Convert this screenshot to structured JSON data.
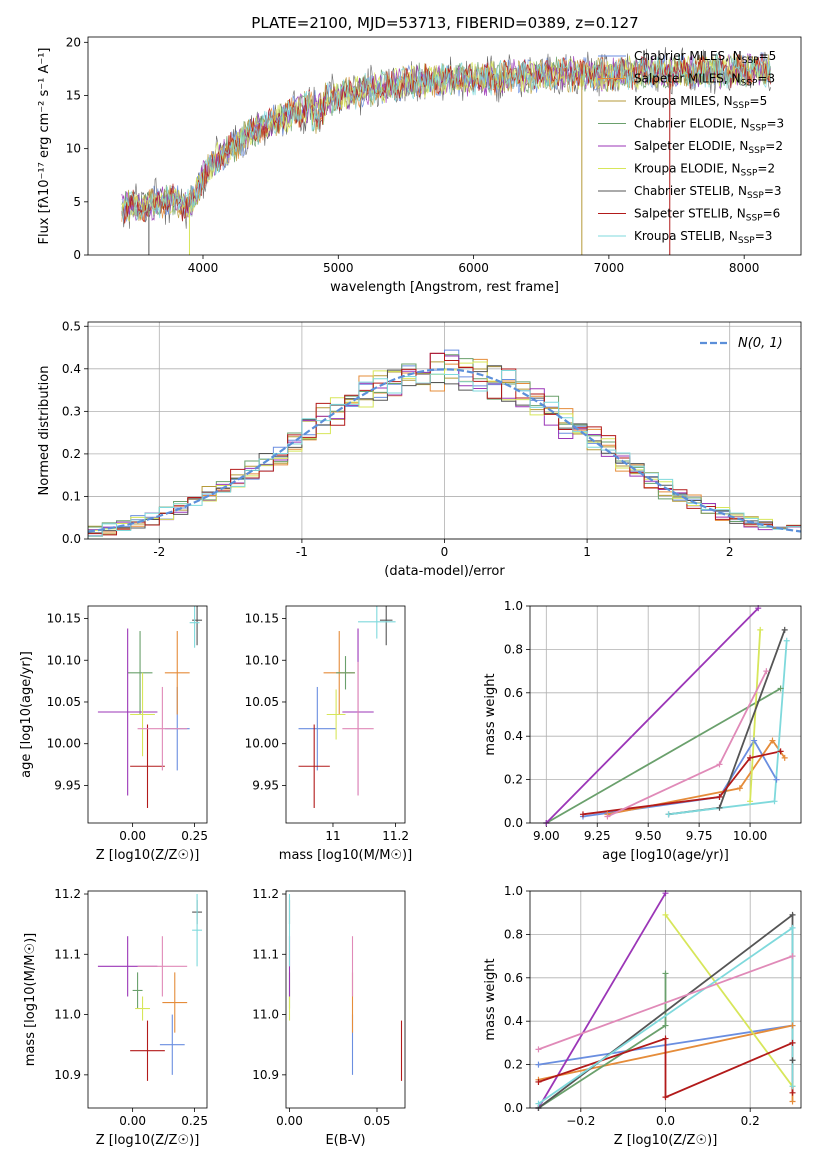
{
  "figure": {
    "title": "PLATE=2100, MJD=53713, FIBERID=0389, z=0.127"
  },
  "colors": {
    "c0": "#6a8ee0",
    "c1": "#e58c3a",
    "c2": "#b59a38",
    "c3": "#6aa06c",
    "c4": "#9b36b7",
    "c5": "#d7e65a",
    "c6": "#555555",
    "c7": "#b21a1a",
    "c8": "#7fd9dc",
    "c9": "#e08ab8",
    "normal": "#5b8fd9"
  },
  "chart_data": [
    {
      "type": "line",
      "xlabel": "wavelength [Angstrom, rest frame]",
      "ylabel": "Flux [fλ10⁻¹⁷ erg cm⁻² s⁻¹ A⁻¹]",
      "xlim": [
        3150,
        8420
      ],
      "ylim": [
        0,
        20.5
      ],
      "xticks": [
        4000,
        5000,
        6000,
        7000,
        8000
      ],
      "yticks": [
        0,
        5,
        10,
        15,
        20
      ],
      "legend_position": "right",
      "series": [
        {
          "name": "Chabrier MILES, N_SSP=5",
          "color": "#6a8ee0"
        },
        {
          "name": "Salpeter MILES, N_SSP=3",
          "color": "#e58c3a"
        },
        {
          "name": "Kroupa MILES, N_SSP=5",
          "color": "#b59a38"
        },
        {
          "name": "Chabrier ELODIE, N_SSP=3",
          "color": "#6aa06c"
        },
        {
          "name": "Salpeter ELODIE, N_SSP=2",
          "color": "#9b36b7"
        },
        {
          "name": "Kroupa ELODIE, N_SSP=2",
          "color": "#d7e65a"
        },
        {
          "name": "Chabrier STELIB, N_SSP=3",
          "color": "#555555"
        },
        {
          "name": "Salpeter STELIB, N_SSP=6",
          "color": "#b21a1a"
        },
        {
          "name": "Kroupa STELIB, N_SSP=3",
          "color": "#7fd9dc"
        }
      ],
      "continuum": {
        "x": [
          3400,
          3600,
          3800,
          3900,
          4000,
          4100,
          4300,
          4500,
          4700,
          4900,
          5000,
          5200,
          5400,
          5600,
          5800,
          6000,
          6200,
          6400,
          6600,
          6800,
          7000,
          7200,
          7400,
          7600,
          7800,
          8000,
          8200
        ],
        "y": [
          4.5,
          4.8,
          5.2,
          4.5,
          7.5,
          9.0,
          11.0,
          12.5,
          13.5,
          14.5,
          15.0,
          15.5,
          16.0,
          16.4,
          16.5,
          16.5,
          16.7,
          16.8,
          17.0,
          17.0,
          17.0,
          17.2,
          17.2,
          17.3,
          17.3,
          17.4,
          17.5
        ]
      },
      "spikes_to_zero_x": [
        3600,
        3900,
        6800,
        7450
      ]
    },
    {
      "type": "histogram",
      "xlabel": "(data-model)/error",
      "ylabel": "Normed distribution",
      "xlim": [
        -2.5,
        2.5
      ],
      "ylim": [
        0,
        0.51
      ],
      "xticks": [
        -2,
        -1,
        0,
        1,
        2
      ],
      "yticks": [
        0.0,
        0.1,
        0.2,
        0.3,
        0.4,
        0.5
      ],
      "bins": 50,
      "legend": "N(0, 1)",
      "legend_position": "top-right",
      "grid": true
    },
    {
      "type": "scatter",
      "xlabel": "Z [log10(Z/Z☉)]",
      "ylabel": "age  [log10(age/yr)]",
      "xlim": [
        -0.18,
        0.3
      ],
      "ylim": [
        9.905,
        10.165
      ],
      "xticks": [
        0.0,
        0.25
      ],
      "xtick_labels": [
        "0.00",
        "0.25"
      ],
      "yticks": [
        9.95,
        10.0,
        10.05,
        10.1,
        10.15
      ],
      "points": [
        {
          "x": 0.18,
          "y": 10.018,
          "xerr": 0.05,
          "yerr": 0.05,
          "color": "#6a8ee0"
        },
        {
          "x": 0.18,
          "y": 10.085,
          "xerr": 0.05,
          "yerr": 0.05,
          "color": "#e58c3a"
        },
        {
          "x": 0.03,
          "y": 10.085,
          "xerr": 0.05,
          "yerr": 0.05,
          "color": "#6aa06c"
        },
        {
          "x": -0.02,
          "y": 10.038,
          "xerr": 0.12,
          "yerr": 0.1,
          "color": "#9b36b7"
        },
        {
          "x": 0.04,
          "y": 10.035,
          "xerr": 0.05,
          "yerr": 0.05,
          "color": "#d7e65a"
        },
        {
          "x": 0.26,
          "y": 10.148,
          "xerr": 0.02,
          "yerr": 0.03,
          "color": "#555555"
        },
        {
          "x": 0.06,
          "y": 9.973,
          "xerr": 0.07,
          "yerr": 0.05,
          "color": "#b21a1a"
        },
        {
          "x": 0.25,
          "y": 10.145,
          "xerr": 0.02,
          "yerr": 0.03,
          "color": "#7fd9dc"
        },
        {
          "x": 0.12,
          "y": 10.018,
          "xerr": 0.1,
          "yerr": 0.05,
          "color": "#e08ab8"
        }
      ]
    },
    {
      "type": "scatter",
      "xlabel": "mass [log10(M/M☉)]",
      "ylabel": "",
      "xlim": [
        10.85,
        11.23
      ],
      "ylim": [
        9.905,
        10.165
      ],
      "xticks": [
        11.0,
        11.2
      ],
      "yticks": [
        9.95,
        10.0,
        10.05,
        10.1,
        10.15
      ],
      "points": [
        {
          "x": 10.95,
          "y": 10.018,
          "xerr": 0.06,
          "yerr": 0.05,
          "color": "#6a8ee0"
        },
        {
          "x": 11.02,
          "y": 10.085,
          "xerr": 0.05,
          "yerr": 0.05,
          "color": "#e58c3a"
        },
        {
          "x": 11.04,
          "y": 10.085,
          "xerr": 0.03,
          "yerr": 0.02,
          "color": "#6aa06c"
        },
        {
          "x": 11.08,
          "y": 10.038,
          "xerr": 0.05,
          "yerr": 0.1,
          "color": "#9b36b7"
        },
        {
          "x": 11.01,
          "y": 10.035,
          "xerr": 0.03,
          "yerr": 0.03,
          "color": "#d7e65a"
        },
        {
          "x": 11.17,
          "y": 10.148,
          "xerr": 0.02,
          "yerr": 0.03,
          "color": "#555555"
        },
        {
          "x": 10.94,
          "y": 9.973,
          "xerr": 0.05,
          "yerr": 0.05,
          "color": "#b21a1a"
        },
        {
          "x": 11.14,
          "y": 10.146,
          "xerr": 0.06,
          "yerr": 0.02,
          "color": "#7fd9dc"
        },
        {
          "x": 11.08,
          "y": 10.018,
          "xerr": 0.05,
          "yerr": 0.08,
          "color": "#e08ab8"
        }
      ]
    },
    {
      "type": "line",
      "xlabel": "age  [log10(age/yr)]",
      "ylabel": "mass weight",
      "xlim": [
        8.92,
        10.25
      ],
      "ylim": [
        0,
        1.0
      ],
      "xticks": [
        9.0,
        9.25,
        9.5,
        9.75,
        10.0
      ],
      "xtick_labels": [
        "9.00",
        "9.25",
        "9.50",
        "9.75",
        "10.00"
      ],
      "yticks": [
        0.0,
        0.2,
        0.4,
        0.6,
        0.8,
        1.0
      ],
      "grid": true,
      "series": [
        {
          "color": "#6a8ee0",
          "x": [
            9.18,
            9.85,
            10.02,
            10.13
          ],
          "y": [
            0.03,
            0.12,
            0.38,
            0.2
          ]
        },
        {
          "color": "#e58c3a",
          "x": [
            9.3,
            9.95,
            10.11,
            10.17
          ],
          "y": [
            0.04,
            0.16,
            0.38,
            0.3
          ]
        },
        {
          "color": "#6aa06c",
          "x": [
            9.0,
            10.15
          ],
          "y": [
            0.0,
            0.62
          ]
        },
        {
          "color": "#9b36b7",
          "x": [
            9.0,
            10.04
          ],
          "y": [
            0.0,
            0.99
          ]
        },
        {
          "color": "#d7e65a",
          "x": [
            10.0,
            10.05
          ],
          "y": [
            0.1,
            0.89
          ]
        },
        {
          "color": "#555555",
          "x": [
            9.6,
            9.85,
            10.17
          ],
          "y": [
            0.04,
            0.07,
            0.89
          ]
        },
        {
          "color": "#b21a1a",
          "x": [
            9.18,
            9.85,
            10.0,
            10.15
          ],
          "y": [
            0.04,
            0.12,
            0.3,
            0.33
          ]
        },
        {
          "color": "#7fd9dc",
          "x": [
            9.6,
            10.12,
            10.18
          ],
          "y": [
            0.04,
            0.1,
            0.84
          ]
        },
        {
          "color": "#e08ab8",
          "x": [
            9.3,
            9.85,
            10.08
          ],
          "y": [
            0.03,
            0.27,
            0.7
          ]
        }
      ]
    },
    {
      "type": "scatter",
      "xlabel": "Z [log10(Z/Z☉)]",
      "ylabel": "mass [log10(M/M☉)]",
      "xlim": [
        -0.18,
        0.3
      ],
      "ylim": [
        10.845,
        11.205
      ],
      "xticks": [
        0.0,
        0.25
      ],
      "xtick_labels": [
        "0.00",
        "0.25"
      ],
      "yticks": [
        10.9,
        11.0,
        11.1,
        11.2
      ],
      "points": [
        {
          "x": 0.16,
          "y": 10.95,
          "xerr": 0.05,
          "yerr": 0.05,
          "color": "#6a8ee0"
        },
        {
          "x": 0.17,
          "y": 11.02,
          "xerr": 0.05,
          "yerr": 0.05,
          "color": "#e58c3a"
        },
        {
          "x": 0.02,
          "y": 11.04,
          "xerr": 0.02,
          "yerr": 0.03,
          "color": "#6aa06c"
        },
        {
          "x": -0.02,
          "y": 11.08,
          "xerr": 0.12,
          "yerr": 0.05,
          "color": "#9b36b7"
        },
        {
          "x": 0.04,
          "y": 11.01,
          "xerr": 0.03,
          "yerr": 0.02,
          "color": "#d7e65a"
        },
        {
          "x": 0.26,
          "y": 11.17,
          "xerr": 0.02,
          "yerr": 0.02,
          "color": "#555555"
        },
        {
          "x": 0.06,
          "y": 10.94,
          "xerr": 0.07,
          "yerr": 0.05,
          "color": "#b21a1a"
        },
        {
          "x": 0.26,
          "y": 11.14,
          "xerr": 0.02,
          "yerr": 0.06,
          "color": "#7fd9dc"
        },
        {
          "x": 0.12,
          "y": 11.08,
          "xerr": 0.1,
          "yerr": 0.05,
          "color": "#e08ab8"
        }
      ]
    },
    {
      "type": "scatter",
      "xlabel": "E(B-V)",
      "ylabel": "",
      "xlim": [
        -0.002,
        0.066
      ],
      "ylim": [
        10.845,
        11.205
      ],
      "xticks": [
        0.0,
        0.05
      ],
      "xtick_labels": [
        "0.00",
        "0.05"
      ],
      "yticks": [
        10.9,
        11.0,
        11.1,
        11.2
      ],
      "points": [
        {
          "x": 0.036,
          "y": 10.95,
          "yerr": 0.05,
          "color": "#6a8ee0"
        },
        {
          "x": 0.036,
          "y": 11.02,
          "yerr": 0.05,
          "color": "#e58c3a"
        },
        {
          "x": 0.0,
          "y": 11.04,
          "yerr": 0.03,
          "color": "#6aa06c"
        },
        {
          "x": 0.0,
          "y": 11.08,
          "yerr": 0.05,
          "color": "#9b36b7"
        },
        {
          "x": 0.0,
          "y": 11.01,
          "yerr": 0.02,
          "color": "#d7e65a"
        },
        {
          "x": 0.0,
          "y": 11.17,
          "yerr": 0.02,
          "color": "#555555"
        },
        {
          "x": 0.064,
          "y": 10.94,
          "yerr": 0.05,
          "color": "#b21a1a"
        },
        {
          "x": 0.0,
          "y": 11.14,
          "yerr": 0.06,
          "color": "#7fd9dc"
        },
        {
          "x": 0.036,
          "y": 11.08,
          "yerr": 0.05,
          "color": "#e08ab8"
        }
      ]
    },
    {
      "type": "line",
      "xlabel": "Z [log10(Z/Z☉)]",
      "ylabel": "mass weight",
      "xlim": [
        -0.32,
        0.32
      ],
      "ylim": [
        0,
        1.0
      ],
      "xticks": [
        -0.2,
        0.0,
        0.2
      ],
      "xtick_labels": [
        "−0.2",
        "0.0",
        "0.2"
      ],
      "yticks": [
        0.0,
        0.2,
        0.4,
        0.6,
        0.8,
        1.0
      ],
      "grid": true,
      "series": [
        {
          "color": "#6a8ee0",
          "x": [
            -0.3,
            0.3
          ],
          "y": [
            0.2,
            0.38
          ]
        },
        {
          "color": "#e58c3a",
          "x": [
            -0.3,
            0.3,
            0.3
          ],
          "y": [
            0.13,
            0.38,
            0.03
          ]
        },
        {
          "color": "#6aa06c",
          "x": [
            -0.3,
            0.0,
            0.0
          ],
          "y": [
            0.0,
            0.38,
            0.62
          ]
        },
        {
          "color": "#9b36b7",
          "x": [
            -0.3,
            0.0
          ],
          "y": [
            0.0,
            0.99
          ]
        },
        {
          "color": "#d7e65a",
          "x": [
            0.0,
            0.3
          ],
          "y": [
            0.89,
            0.1
          ]
        },
        {
          "color": "#555555",
          "x": [
            -0.3,
            0.3,
            0.3
          ],
          "y": [
            0.0,
            0.89,
            0.22
          ]
        },
        {
          "color": "#b21a1a",
          "x": [
            -0.3,
            0.0,
            0.0,
            0.3,
            0.3
          ],
          "y": [
            0.12,
            0.32,
            0.05,
            0.3,
            0.07
          ]
        },
        {
          "color": "#7fd9dc",
          "x": [
            -0.3,
            0.3,
            0.3
          ],
          "y": [
            0.02,
            0.83,
            0.1
          ]
        },
        {
          "color": "#e08ab8",
          "x": [
            -0.3,
            0.3
          ],
          "y": [
            0.27,
            0.7
          ]
        }
      ]
    }
  ]
}
